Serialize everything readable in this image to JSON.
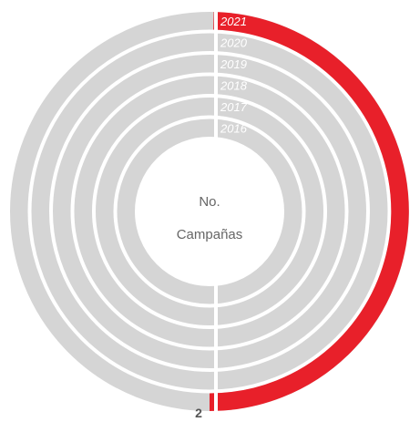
{
  "chart_data": {
    "type": "radial-bar",
    "center_label": [
      "No.",
      "Campañas"
    ],
    "rings": [
      {
        "year": "2021",
        "value": 2
      },
      {
        "year": "2020",
        "value": 0
      },
      {
        "year": "2019",
        "value": 0
      },
      {
        "year": "2018",
        "value": 0
      },
      {
        "year": "2017",
        "value": 0
      },
      {
        "year": "2016",
        "value": 0
      }
    ],
    "value_axis": {
      "min": 0,
      "max": 4
    },
    "max_value_label": "2",
    "colors": {
      "track": "#d5d5d5",
      "value": "#e8202a",
      "label": "#ffffff"
    }
  }
}
